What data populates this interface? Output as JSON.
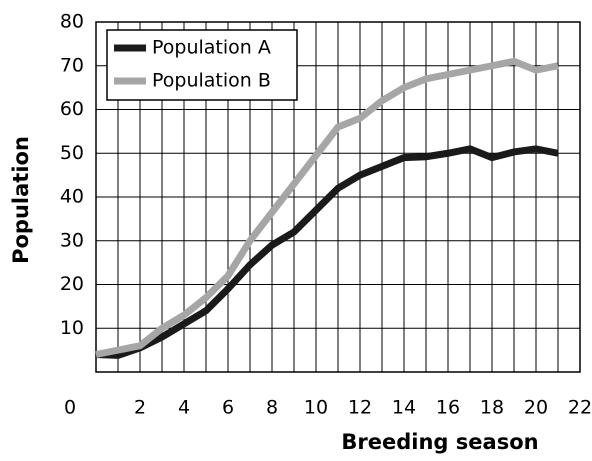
{
  "chart_data": {
    "type": "line",
    "xlabel": "Breeding season",
    "ylabel": "Population",
    "x": [
      0,
      1,
      2,
      3,
      4,
      5,
      6,
      7,
      8,
      9,
      10,
      11,
      12,
      13,
      14,
      15,
      16,
      17,
      18,
      19,
      20,
      21
    ],
    "series": [
      {
        "name": "Population A",
        "color": "#1a1a1a",
        "values": [
          4,
          3.8,
          5.5,
          8,
          11,
          14,
          19,
          24.5,
          29,
          32,
          37,
          42,
          45,
          47,
          49,
          49.2,
          50,
          51,
          49,
          50.3,
          51,
          50
        ]
      },
      {
        "name": "Population B",
        "color": "#a6a6a6",
        "values": [
          4,
          5,
          6,
          10,
          13,
          17,
          22,
          30,
          36.5,
          43,
          49.5,
          56,
          58,
          62,
          65,
          67,
          68,
          69,
          70,
          71,
          69,
          70
        ]
      }
    ],
    "xlim": [
      0,
      22
    ],
    "xticks": [
      0,
      2,
      4,
      6,
      8,
      10,
      12,
      14,
      16,
      18,
      20,
      22
    ],
    "xminorticks": [
      1,
      3,
      5,
      7,
      9,
      11,
      13,
      15,
      17,
      19,
      21
    ],
    "ylim": [
      0,
      80
    ],
    "yticks": [
      10,
      20,
      30,
      40,
      50,
      60,
      70,
      80
    ],
    "grid": true,
    "legend": "upper left"
  }
}
